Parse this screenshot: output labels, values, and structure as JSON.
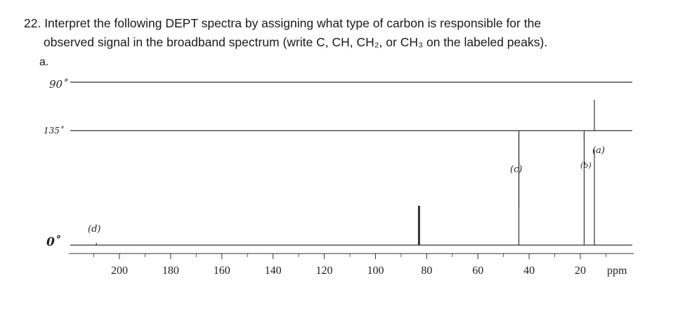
{
  "question": {
    "line1": "22. Interpret the following DEPT spectra by assigning what type of carbon is responsible for the",
    "line2": "observed signal in the broadband spectrum (write C, CH, CH₂, or CH₃ on the labeled peaks).",
    "part_label": "a."
  },
  "spectra": {
    "row_labels": [
      "90˚",
      "135˚",
      "0˚"
    ],
    "peak_labels": [
      "(a)",
      "(b)",
      "(c)",
      "(d)"
    ],
    "axis_unit": "ppm",
    "tick_labels": [
      "200",
      "180",
      "160",
      "140",
      "120",
      "100",
      "80",
      "60",
      "40",
      "20"
    ]
  },
  "chart_data": {
    "type": "line",
    "title": "",
    "xlabel": "ppm",
    "xlim": [
      220,
      10
    ],
    "x_ticks": [
      200,
      180,
      160,
      140,
      120,
      100,
      80,
      60,
      40,
      20
    ],
    "series": [
      {
        "name": "90˚",
        "peaks": []
      },
      {
        "name": "135˚",
        "peaks": [
          {
            "ppm": 44,
            "intensity": -1.0
          },
          {
            "ppm": 14.5,
            "intensity": 0.4
          },
          {
            "ppm": 18.5,
            "intensity": -0.1
          }
        ]
      },
      {
        "name": "0˚",
        "peaks": [
          {
            "ppm": 83,
            "intensity": 0.35
          },
          {
            "ppm": 44,
            "intensity": 1.0
          },
          {
            "ppm": 18.5,
            "intensity": 1.0
          },
          {
            "ppm": 14.5,
            "intensity": 0.85
          },
          {
            "ppm": 209,
            "intensity": 0.02
          }
        ]
      }
    ],
    "annotations": [
      {
        "text": "(a)",
        "ppm": 14.5
      },
      {
        "text": "(b)",
        "ppm": 18.5
      },
      {
        "text": "(c)",
        "ppm": 44
      },
      {
        "text": "(d)",
        "ppm": 209
      }
    ]
  }
}
